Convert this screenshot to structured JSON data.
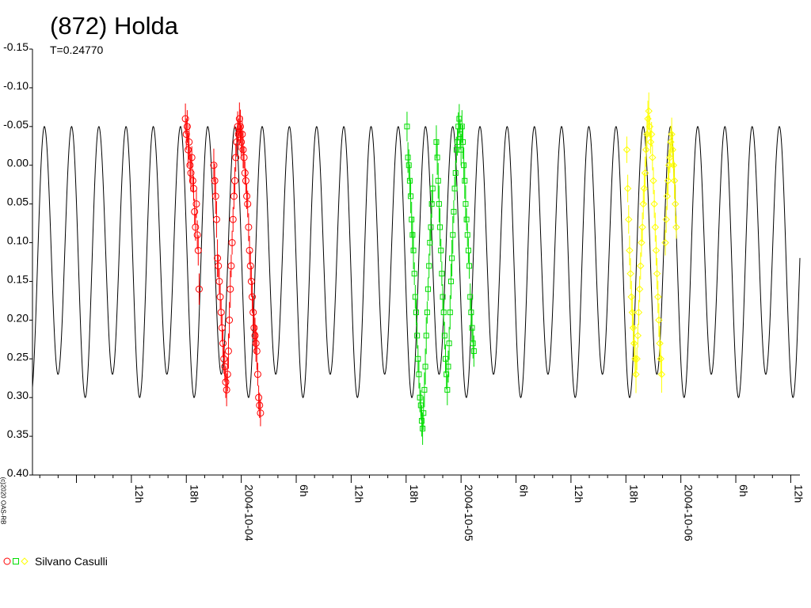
{
  "title": "(872) Holda",
  "subtitle": "T=0.24770",
  "copyright": "(c)2020 OAS-RB",
  "legend": {
    "label": "Silvano Casulli",
    "symbols": [
      {
        "shape": "circle",
        "color": "#ff0000"
      },
      {
        "shape": "square",
        "color": "#00dd00"
      },
      {
        "shape": "diamond",
        "color": "#ffff00"
      }
    ]
  },
  "chart_data": {
    "type": "line",
    "title": "(872) Holda",
    "subtitle": "T=0.24770",
    "ylim": [
      -0.15,
      0.4
    ],
    "y_inverted": true,
    "y_ticks": [
      "-0.15",
      "-0.10",
      "-0.05",
      "0.00",
      "0.05",
      "0.10",
      "0.15",
      "0.20",
      "0.25",
      "0.30",
      "0.35",
      "0.40"
    ],
    "x_unit": "hours since 2004-10-03 00:00 UT",
    "xlim": [
      1.2,
      85.0
    ],
    "x_tick_labels": [
      {
        "hour": 12,
        "label": "12h"
      },
      {
        "hour": 18,
        "label": "18h"
      },
      {
        "hour": 24,
        "label": "2004-10-04"
      },
      {
        "hour": 30,
        "label": "6h"
      },
      {
        "hour": 36,
        "label": "12h"
      },
      {
        "hour": 42,
        "label": "18h"
      },
      {
        "hour": 48,
        "label": "2004-10-05"
      },
      {
        "hour": 54,
        "label": "6h"
      },
      {
        "hour": 60,
        "label": "12h"
      },
      {
        "hour": 66,
        "label": "18h"
      },
      {
        "hour": 72,
        "label": "2004-10-06"
      },
      {
        "hour": 78,
        "label": "6h"
      },
      {
        "hour": 84,
        "label": "12h"
      }
    ],
    "model_curve": {
      "color": "#000000",
      "period_days": 0.2477,
      "minima_mag": [
        -0.05,
        -0.05
      ],
      "maxima_mag": [
        0.3,
        0.27
      ]
    },
    "series": [
      {
        "name": "Silvano Casulli",
        "color": "#ff0000",
        "marker": "circle",
        "points": [
          [
            17.9,
            -0.06
          ],
          [
            18.0,
            -0.04
          ],
          [
            18.1,
            -0.05
          ],
          [
            18.2,
            -0.02
          ],
          [
            18.3,
            -0.03
          ],
          [
            18.4,
            0.0
          ],
          [
            18.5,
            0.01
          ],
          [
            18.6,
            -0.01
          ],
          [
            18.7,
            0.02
          ],
          [
            18.8,
            0.03
          ],
          [
            18.9,
            0.06
          ],
          [
            19.0,
            0.08
          ],
          [
            19.1,
            0.05
          ],
          [
            19.2,
            0.09
          ],
          [
            19.3,
            0.11
          ],
          [
            19.4,
            0.16
          ],
          [
            21.0,
            0.0
          ],
          [
            21.1,
            0.02
          ],
          [
            21.2,
            0.04
          ],
          [
            21.3,
            0.07
          ],
          [
            21.4,
            0.12
          ],
          [
            21.5,
            0.13
          ],
          [
            21.6,
            0.15
          ],
          [
            21.7,
            0.17
          ],
          [
            21.8,
            0.19
          ],
          [
            21.9,
            0.21
          ],
          [
            22.0,
            0.23
          ],
          [
            22.1,
            0.25
          ],
          [
            22.2,
            0.26
          ],
          [
            22.3,
            0.28
          ],
          [
            22.4,
            0.29
          ],
          [
            22.5,
            0.27
          ],
          [
            22.6,
            0.24
          ],
          [
            22.7,
            0.2
          ],
          [
            22.8,
            0.16
          ],
          [
            22.9,
            0.13
          ],
          [
            23.0,
            0.1
          ],
          [
            23.1,
            0.07
          ],
          [
            23.2,
            0.04
          ],
          [
            23.3,
            0.02
          ],
          [
            23.4,
            -0.01
          ],
          [
            23.5,
            -0.03
          ],
          [
            23.6,
            -0.05
          ],
          [
            23.7,
            -0.04
          ],
          [
            23.8,
            -0.06
          ],
          [
            23.9,
            -0.05
          ],
          [
            24.0,
            -0.03
          ],
          [
            24.1,
            -0.04
          ],
          [
            24.2,
            -0.02
          ],
          [
            24.3,
            -0.01
          ],
          [
            24.4,
            0.01
          ],
          [
            24.5,
            0.02
          ],
          [
            24.6,
            0.04
          ],
          [
            24.7,
            0.05
          ],
          [
            24.8,
            0.08
          ],
          [
            24.9,
            0.11
          ],
          [
            25.0,
            0.13
          ],
          [
            25.1,
            0.15
          ],
          [
            25.2,
            0.17
          ],
          [
            25.3,
            0.19
          ],
          [
            25.4,
            0.21
          ],
          [
            25.5,
            0.22
          ],
          [
            25.6,
            0.23
          ],
          [
            25.7,
            0.24
          ],
          [
            25.8,
            0.27
          ],
          [
            25.9,
            0.3
          ],
          [
            26.0,
            0.31
          ],
          [
            26.1,
            0.32
          ]
        ]
      },
      {
        "name": "Silvano Casulli",
        "color": "#00dd00",
        "marker": "square",
        "points": [
          [
            42.1,
            -0.05
          ],
          [
            42.2,
            -0.01
          ],
          [
            42.3,
            0.0
          ],
          [
            42.4,
            0.02
          ],
          [
            42.5,
            0.04
          ],
          [
            42.6,
            0.07
          ],
          [
            42.7,
            0.09
          ],
          [
            42.8,
            0.11
          ],
          [
            42.9,
            0.14
          ],
          [
            43.0,
            0.17
          ],
          [
            43.1,
            0.19
          ],
          [
            43.2,
            0.22
          ],
          [
            43.3,
            0.25
          ],
          [
            43.4,
            0.27
          ],
          [
            43.5,
            0.3
          ],
          [
            43.6,
            0.31
          ],
          [
            43.7,
            0.33
          ],
          [
            43.8,
            0.34
          ],
          [
            43.9,
            0.32
          ],
          [
            44.0,
            0.29
          ],
          [
            44.1,
            0.26
          ],
          [
            44.2,
            0.22
          ],
          [
            44.3,
            0.19
          ],
          [
            44.4,
            0.16
          ],
          [
            44.5,
            0.13
          ],
          [
            44.6,
            0.1
          ],
          [
            44.7,
            0.08
          ],
          [
            44.8,
            0.05
          ],
          [
            44.9,
            0.03
          ],
          [
            45.3,
            -0.03
          ],
          [
            45.4,
            -0.01
          ],
          [
            45.5,
            0.02
          ],
          [
            45.6,
            0.05
          ],
          [
            45.7,
            0.08
          ],
          [
            45.8,
            0.11
          ],
          [
            45.9,
            0.14
          ],
          [
            46.0,
            0.17
          ],
          [
            46.1,
            0.19
          ],
          [
            46.2,
            0.22
          ],
          [
            46.3,
            0.25
          ],
          [
            46.4,
            0.27
          ],
          [
            46.5,
            0.29
          ],
          [
            46.6,
            0.26
          ],
          [
            46.7,
            0.23
          ],
          [
            46.8,
            0.19
          ],
          [
            46.9,
            0.15
          ],
          [
            47.0,
            0.12
          ],
          [
            47.1,
            0.09
          ],
          [
            47.2,
            0.06
          ],
          [
            47.3,
            0.03
          ],
          [
            47.4,
            0.01
          ],
          [
            47.5,
            -0.02
          ],
          [
            47.6,
            -0.03
          ],
          [
            47.7,
            -0.05
          ],
          [
            47.8,
            -0.06
          ],
          [
            47.9,
            -0.04
          ],
          [
            48.0,
            -0.02
          ],
          [
            48.1,
            -0.05
          ],
          [
            48.2,
            -0.03
          ],
          [
            48.3,
            0.0
          ],
          [
            48.4,
            0.02
          ],
          [
            48.5,
            0.05
          ],
          [
            48.6,
            0.07
          ],
          [
            48.7,
            0.09
          ],
          [
            48.8,
            0.11
          ],
          [
            48.9,
            0.13
          ],
          [
            49.0,
            0.17
          ],
          [
            49.1,
            0.19
          ],
          [
            49.2,
            0.21
          ],
          [
            49.3,
            0.23
          ],
          [
            49.4,
            0.24
          ]
        ]
      },
      {
        "name": "Silvano Casulli",
        "color": "#ffff00",
        "marker": "diamond",
        "points": [
          [
            66.1,
            -0.02
          ],
          [
            66.2,
            0.03
          ],
          [
            66.3,
            0.07
          ],
          [
            66.4,
            0.11
          ],
          [
            66.5,
            0.14
          ],
          [
            66.6,
            0.17
          ],
          [
            66.7,
            0.19
          ],
          [
            66.8,
            0.21
          ],
          [
            66.9,
            0.23
          ],
          [
            67.0,
            0.25
          ],
          [
            67.1,
            0.27
          ],
          [
            67.2,
            0.25
          ],
          [
            67.3,
            0.22
          ],
          [
            67.4,
            0.19
          ],
          [
            67.5,
            0.16
          ],
          [
            67.6,
            0.13
          ],
          [
            67.7,
            0.1
          ],
          [
            67.8,
            0.08
          ],
          [
            67.9,
            0.05
          ],
          [
            68.0,
            0.03
          ],
          [
            68.1,
            0.01
          ],
          [
            68.2,
            -0.02
          ],
          [
            68.3,
            -0.04
          ],
          [
            68.4,
            -0.06
          ],
          [
            68.5,
            -0.07
          ],
          [
            68.6,
            -0.05
          ],
          [
            68.7,
            -0.03
          ],
          [
            68.8,
            -0.04
          ],
          [
            68.9,
            -0.01
          ],
          [
            69.0,
            0.02
          ],
          [
            69.1,
            0.05
          ],
          [
            69.2,
            0.08
          ],
          [
            69.3,
            0.11
          ],
          [
            69.4,
            0.14
          ],
          [
            69.5,
            0.17
          ],
          [
            69.6,
            0.2
          ],
          [
            69.7,
            0.23
          ],
          [
            69.8,
            0.25
          ],
          [
            69.9,
            0.27
          ],
          [
            70.3,
            0.1
          ],
          [
            70.4,
            0.07
          ],
          [
            70.5,
            0.04
          ],
          [
            70.6,
            0.02
          ],
          [
            70.7,
            0.0
          ],
          [
            70.8,
            -0.01
          ],
          [
            70.9,
            -0.03
          ],
          [
            71.0,
            -0.04
          ],
          [
            71.1,
            -0.02
          ],
          [
            71.2,
            0.0
          ],
          [
            71.3,
            0.02
          ],
          [
            71.4,
            0.05
          ],
          [
            71.5,
            0.08
          ]
        ]
      }
    ]
  }
}
